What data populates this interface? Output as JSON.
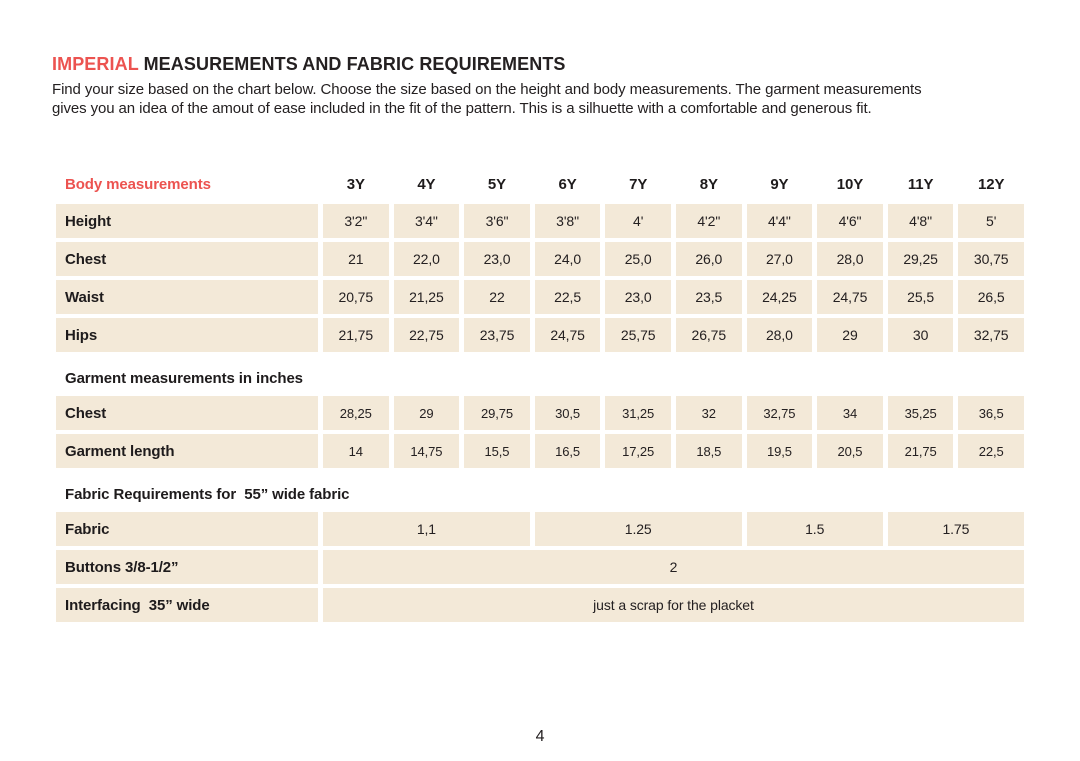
{
  "colors": {
    "accent_red": "#ec5350",
    "cell_beige": "#f3e9d8",
    "text_dark": "#242021",
    "background": "#ffffff"
  },
  "header": {
    "title_highlight": "IMPERIAL",
    "title_rest": " MEASUREMENTS AND FABRIC REQUIREMENTS",
    "description_lines": [
      "Find your size based on the chart below. Choose the size based on the height and body measurements. The garment measurements",
      "gives you an idea of the amout of ease included in the fit of the pattern. This is a silhuette with a comfortable and generous fit."
    ]
  },
  "table": {
    "header": {
      "label": "Body measurements",
      "sizes": [
        "3Y",
        "4Y",
        "5Y",
        "6Y",
        "7Y",
        "8Y",
        "9Y",
        "10Y",
        "11Y",
        "12Y"
      ]
    },
    "body_rows": [
      {
        "label": "Height",
        "values": [
          "3'2\"",
          "3'4\"",
          "3'6\"",
          "3'8\"",
          "4'",
          "4'2\"",
          "4'4\"",
          "4'6\"",
          "4'8\"",
          "5'"
        ]
      },
      {
        "label": "Chest",
        "values": [
          "21",
          "22,0",
          "23,0",
          "24,0",
          "25,0",
          "26,0",
          "27,0",
          "28,0",
          "29,25",
          "30,75"
        ]
      },
      {
        "label": "Waist",
        "values": [
          "20,75",
          "21,25",
          "22",
          "22,5",
          "23,0",
          "23,5",
          "24,25",
          "24,75",
          "25,5",
          "26,5"
        ]
      },
      {
        "label": "Hips",
        "values": [
          "21,75",
          "22,75",
          "23,75",
          "24,75",
          "25,75",
          "26,75",
          "28,0",
          "29",
          "30",
          "32,75"
        ]
      }
    ],
    "garment_section_title": "Garment measurements in inches",
    "garment_rows": [
      {
        "label": "Chest",
        "values": [
          "28,25",
          "29",
          "29,75",
          "30,5",
          "31,25",
          "32",
          "32,75",
          "34",
          "35,25",
          "36,5"
        ]
      },
      {
        "label": "Garment length",
        "values": [
          "14",
          "14,75",
          "15,5",
          "16,5",
          "17,25",
          "18,5",
          "19,5",
          "20,5",
          "21,75",
          "22,5"
        ]
      }
    ],
    "fabric_section_title": "Fabric Requirements for  55” wide fabric",
    "fabric_rows": [
      {
        "label": "Fabric",
        "cells": [
          {
            "value": "1,1",
            "span": 3
          },
          {
            "value": "1.25",
            "span": 3
          },
          {
            "value": "1.5",
            "span": 2
          },
          {
            "value": "1.75",
            "span": 2
          }
        ]
      },
      {
        "label": "Buttons 3/8-1/2”",
        "cells": [
          {
            "value": "2",
            "span": 10
          }
        ]
      },
      {
        "label": "Interfacing  35” wide",
        "cells": [
          {
            "value": "just a scrap for the placket",
            "span": 10
          }
        ]
      }
    ]
  },
  "footer": {
    "page_number": "4"
  }
}
